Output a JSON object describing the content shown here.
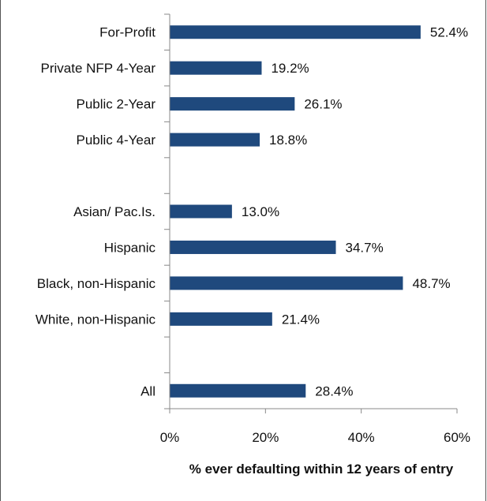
{
  "chart_data": {
    "type": "bar",
    "orientation": "horizontal",
    "title": "",
    "xlabel": "% ever defaulting within 12 years of entry",
    "ylabel": "",
    "xlim": [
      0,
      60
    ],
    "xticks": [
      0,
      20,
      40,
      60
    ],
    "xtick_labels": [
      "0%",
      "20%",
      "40%",
      "60%"
    ],
    "grid": false,
    "legend": "none",
    "bar_color": "#1F497D",
    "categories": [
      "For-Profit",
      "Private NFP 4-Year",
      "Public 2-Year",
      "Public 4-Year",
      "",
      "Asian/ Pac.Is.",
      "Hispanic",
      "Black, non-Hispanic",
      "White, non-Hispanic",
      "",
      "All"
    ],
    "values": [
      52.4,
      19.2,
      26.1,
      18.8,
      null,
      13.0,
      34.7,
      48.7,
      21.4,
      null,
      28.4
    ],
    "value_labels": [
      "52.4%",
      "19.2%",
      "26.1%",
      "18.8%",
      "",
      "13.0%",
      "34.7%",
      "48.7%",
      "21.4%",
      "",
      "28.4%"
    ]
  }
}
